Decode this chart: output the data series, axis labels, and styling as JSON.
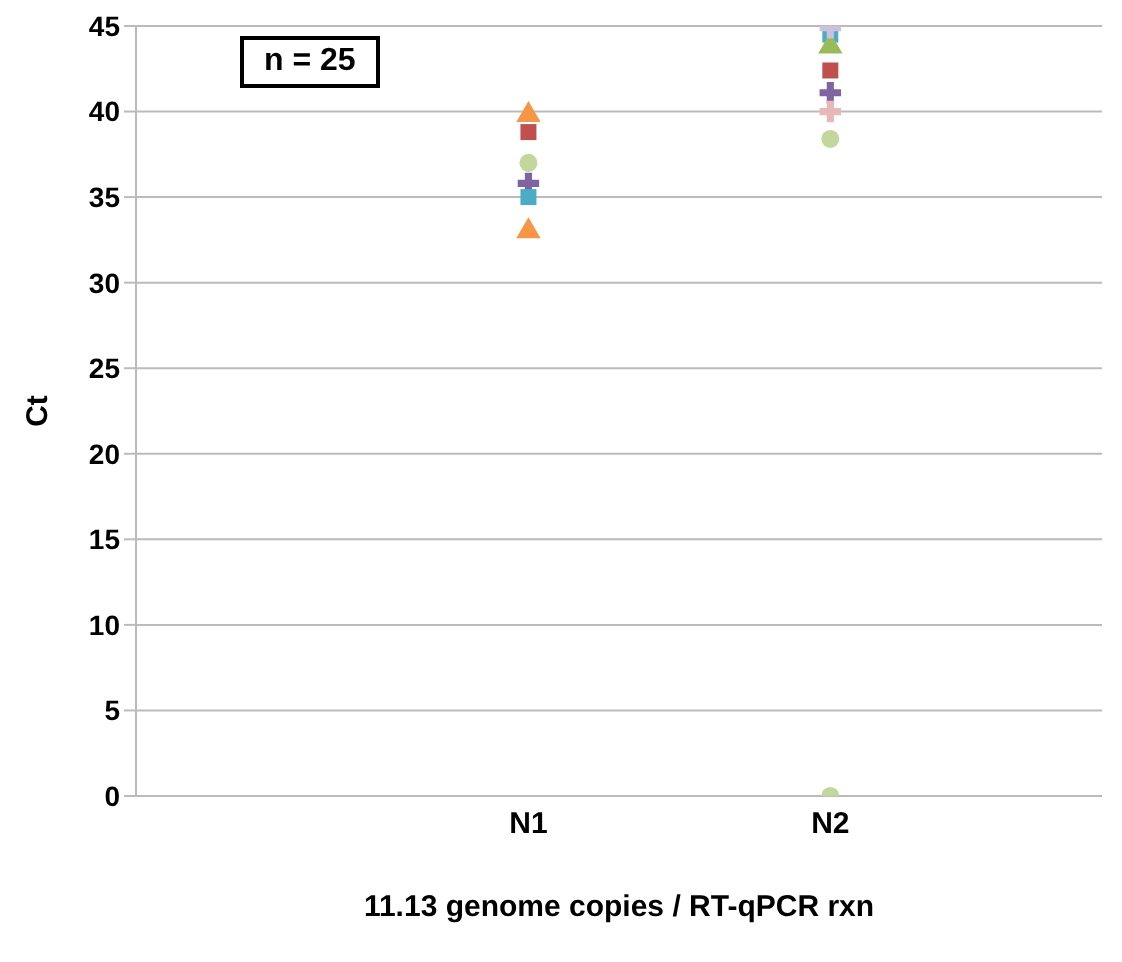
{
  "chart_data": {
    "type": "scatter",
    "xlabel": "11.13 genome copies / RT-qPCR rxn",
    "ylabel": "Ct",
    "categories": [
      "N1",
      "N2"
    ],
    "ylim": [
      0,
      45
    ],
    "yticks": [
      0,
      5,
      10,
      15,
      20,
      25,
      30,
      35,
      40,
      45
    ],
    "grid": "y",
    "annotations": [
      "n = 25"
    ],
    "series": [
      {
        "color": "#f79646",
        "marker": "triangle",
        "x": [
          "N1",
          "N1"
        ],
        "values": [
          39.8,
          33.0
        ]
      },
      {
        "color": "#c0504d",
        "marker": "square",
        "x": [
          "N1",
          "N2"
        ],
        "values": [
          38.8,
          42.4
        ]
      },
      {
        "color": "#c3d69b",
        "marker": "circle",
        "x": [
          "N1",
          "N2",
          "N2"
        ],
        "values": [
          37.0,
          38.4,
          0
        ]
      },
      {
        "color": "#8064a2",
        "marker": "cross",
        "x": [
          "N1",
          "N2"
        ],
        "values": [
          35.8,
          41.1
        ]
      },
      {
        "color": "#4bacc6",
        "marker": "square",
        "x": [
          "N1",
          "N2"
        ],
        "values": [
          35.0,
          44.5
        ]
      },
      {
        "color": "#9bbb59",
        "marker": "triangle",
        "x": [
          "N2"
        ],
        "values": [
          43.8
        ]
      },
      {
        "color": "#e6b9b8",
        "marker": "cross",
        "x": [
          "N2"
        ],
        "values": [
          40.0
        ]
      },
      {
        "color": "#ccc1da",
        "marker": "cross",
        "x": [
          "N2"
        ],
        "values": [
          44.9
        ]
      }
    ]
  }
}
